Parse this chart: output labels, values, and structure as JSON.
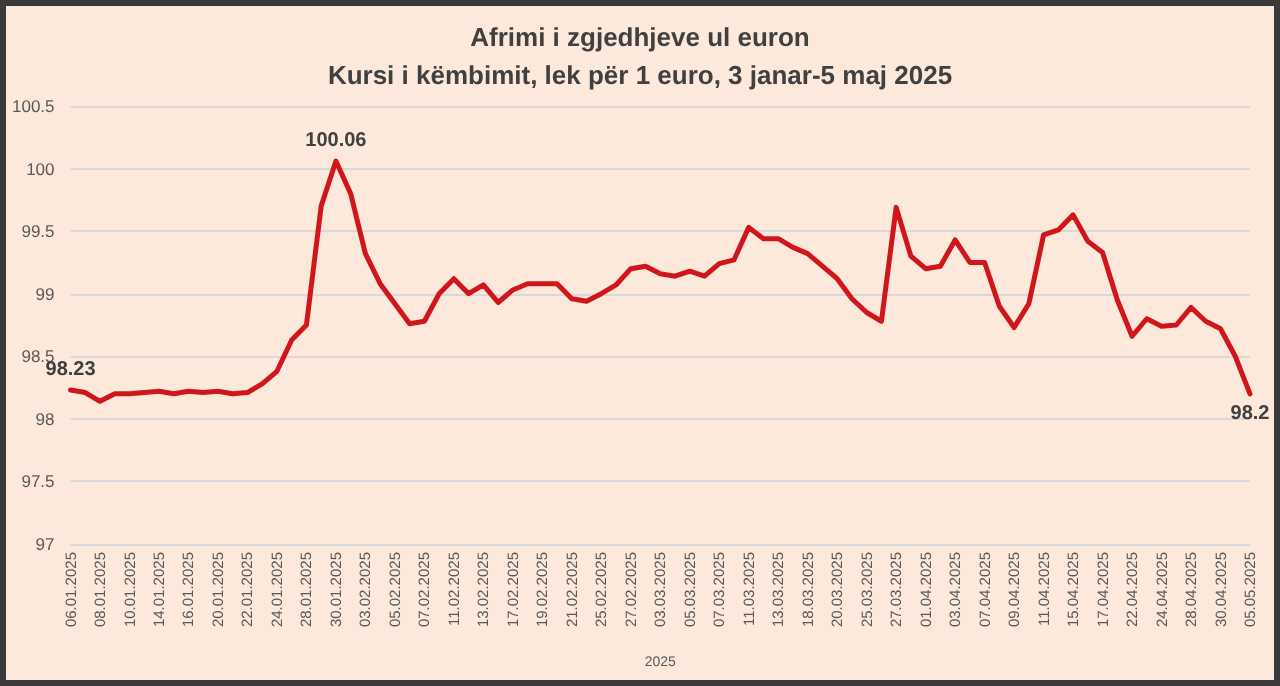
{
  "chart_data": {
    "type": "line",
    "title": "Afrimi i zgjedhjeve ul euron",
    "subtitle": "Kursi i këmbimit, lek për 1 euro, 3 janar-5 maj 2025",
    "xlabel": "2025",
    "categories": [
      "06.01.2025",
      null,
      "08.01.2025",
      null,
      "10.01.2025",
      null,
      "14.01.2025",
      null,
      "16.01.2025",
      null,
      "20.01.2025",
      null,
      "22.01.2025",
      null,
      "24.01.2025",
      null,
      "28.01.2025",
      null,
      "30.01.2025",
      null,
      "03.02.2025",
      null,
      "05.02.2025",
      null,
      "07.02.2025",
      null,
      "11.02.2025",
      null,
      "13.02.2025",
      null,
      "17.02.2025",
      null,
      "19.02.2025",
      null,
      "21.02.2025",
      null,
      "25.02.2025",
      null,
      "27.02.2025",
      null,
      "03.03.2025",
      null,
      "05.03.2025",
      null,
      "07.03.2025",
      null,
      "11.03.2025",
      null,
      "13.03.2025",
      null,
      "18.03.2025",
      null,
      "20.03.2025",
      null,
      "25.03.2025",
      null,
      "27.03.2025",
      null,
      "01.04.2025",
      null,
      "03.04.2025",
      null,
      "07.04.2025",
      null,
      "09.04.2025",
      null,
      "11.04.2025",
      null,
      "15.04.2025",
      null,
      "17.04.2025",
      null,
      "22.04.2025",
      null,
      "24.04.2025",
      null,
      "28.04.2025",
      null,
      "30.04.2025",
      null,
      "05.05.2025"
    ],
    "series": [
      {
        "color": "#d0161b",
        "values": [
          98.23,
          98.21,
          98.14,
          98.2,
          98.2,
          98.21,
          98.22,
          98.2,
          98.22,
          98.21,
          98.22,
          98.2,
          98.21,
          98.28,
          98.38,
          98.63,
          98.75,
          99.7,
          100.06,
          99.8,
          99.32,
          99.08,
          98.92,
          98.76,
          98.78,
          99.0,
          99.12,
          99.0,
          99.07,
          98.93,
          99.03,
          99.08,
          99.08,
          99.08,
          98.96,
          98.94,
          99.0,
          99.07,
          99.2,
          99.22,
          99.16,
          99.14,
          99.18,
          99.14,
          99.24,
          99.27,
          99.53,
          99.44,
          99.44,
          99.37,
          99.32,
          99.22,
          99.12,
          98.96,
          98.85,
          98.78,
          99.69,
          99.3,
          99.2,
          99.22,
          99.43,
          99.25,
          99.25,
          98.9,
          98.73,
          98.92,
          99.47,
          99.51,
          99.63,
          99.42,
          99.33,
          98.95,
          98.66,
          98.8,
          98.74,
          98.75,
          98.89,
          98.78,
          98.72,
          98.5,
          98.2
        ],
        "value_labels": [
          "98.23",
          null,
          null,
          null,
          null,
          null,
          null,
          null,
          null,
          null,
          null,
          null,
          null,
          null,
          null,
          null,
          null,
          null,
          "100.06",
          null,
          null,
          null,
          null,
          null,
          null,
          null,
          null,
          null,
          null,
          null,
          null,
          null,
          null,
          null,
          null,
          null,
          null,
          null,
          null,
          null,
          null,
          null,
          null,
          null,
          null,
          null,
          null,
          null,
          null,
          null,
          null,
          null,
          null,
          null,
          null,
          null,
          null,
          null,
          null,
          null,
          null,
          null,
          null,
          null,
          null,
          null,
          null,
          null,
          null,
          null,
          null,
          null,
          null,
          null,
          null,
          null,
          null,
          null,
          null,
          null,
          "98.2"
        ]
      }
    ],
    "ylim": [
      97,
      100.5
    ],
    "yticks": [
      97,
      97.5,
      98,
      98.5,
      99,
      99.5,
      100,
      100.5
    ],
    "grid": "y",
    "marker": "none",
    "line_style": "solid"
  }
}
